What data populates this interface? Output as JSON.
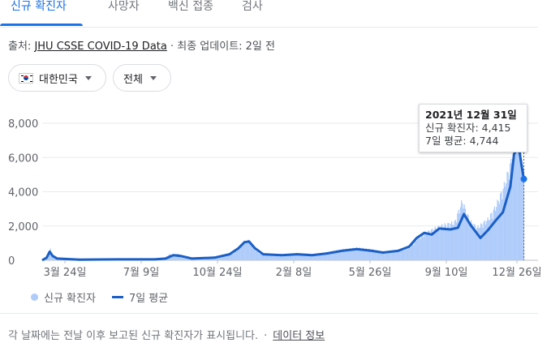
{
  "tabs": [
    {
      "label": "신규 확진자",
      "active": true
    },
    {
      "label": "사망자",
      "active": false
    },
    {
      "label": "백신 접종",
      "active": false
    },
    {
      "label": "검사",
      "active": false
    }
  ],
  "source": {
    "prefix": "출처: ",
    "link": "JHU CSSE COVID-19 Data",
    "suffix": " · 최종 업데이트: 2일 전"
  },
  "filters": {
    "country": "대한민국",
    "scope": "전체"
  },
  "tooltip": {
    "title": "2021년 12월 31일",
    "cases_line": "신규 확진자: 4,415",
    "avg_line": "7일 평균: 4,744"
  },
  "legend": {
    "daily": "신규 확진자",
    "average": "7일 평균"
  },
  "footer": {
    "note": "각 날짜에는 전날 이후 보고된 신규 확진자가 표시됩니다.",
    "sep": "·",
    "link": "데이터 정보"
  },
  "colors": {
    "accent": "#1a73e8",
    "bars": "#aecbfa",
    "avg_line": "#1a5fc6"
  },
  "chart_data": {
    "type": "area",
    "y_ticks": [
      "8,000",
      "6,000",
      "4,000",
      "2,000",
      "0"
    ],
    "y_tick_values": [
      8000,
      6000,
      4000,
      2000,
      0
    ],
    "x_ticks": [
      "3월 24일",
      "7월 9일",
      "10월 24일",
      "2월 8일",
      "5월 26일",
      "9월 10일",
      "12월 26일"
    ],
    "ylim": [
      0,
      8000
    ],
    "grid": true,
    "legend_position": "bottom-left",
    "highlight_date": "2021년 12월 31일",
    "daily_cases": [
      [
        0,
        0
      ],
      [
        4,
        150
      ],
      [
        8,
        400
      ],
      [
        10,
        700
      ],
      [
        12,
        350
      ],
      [
        14,
        250
      ],
      [
        18,
        100
      ],
      [
        40,
        60
      ],
      [
        60,
        40
      ],
      [
        90,
        40
      ],
      [
        110,
        50
      ],
      [
        140,
        50
      ],
      [
        160,
        60
      ],
      [
        170,
        350
      ],
      [
        175,
        250
      ],
      [
        180,
        400
      ],
      [
        185,
        200
      ],
      [
        195,
        100
      ],
      [
        220,
        100
      ],
      [
        240,
        200
      ],
      [
        255,
        400
      ],
      [
        262,
        700
      ],
      [
        268,
        1050
      ],
      [
        275,
        1100
      ],
      [
        280,
        800
      ],
      [
        288,
        400
      ],
      [
        300,
        300
      ],
      [
        320,
        250
      ],
      [
        340,
        400
      ],
      [
        350,
        350
      ],
      [
        360,
        300
      ],
      [
        380,
        450
      ],
      [
        400,
        600
      ],
      [
        420,
        700
      ],
      [
        440,
        600
      ],
      [
        455,
        450
      ],
      [
        470,
        550
      ],
      [
        480,
        600
      ],
      [
        490,
        700
      ],
      [
        500,
        1200
      ],
      [
        510,
        1500
      ],
      [
        520,
        1700
      ],
      [
        530,
        1900
      ],
      [
        540,
        2000
      ],
      [
        550,
        2100
      ],
      [
        560,
        3300
      ],
      [
        570,
        2200
      ],
      [
        580,
        1800
      ],
      [
        595,
        2300
      ],
      [
        605,
        3000
      ],
      [
        615,
        4000
      ],
      [
        625,
        5400
      ],
      [
        630,
        6500
      ],
      [
        635,
        7300
      ],
      [
        640,
        6000
      ],
      [
        643,
        4415
      ]
    ],
    "seven_day_average": [
      [
        0,
        0
      ],
      [
        6,
        150
      ],
      [
        10,
        500
      ],
      [
        14,
        250
      ],
      [
        20,
        100
      ],
      [
        50,
        40
      ],
      [
        100,
        50
      ],
      [
        150,
        50
      ],
      [
        165,
        100
      ],
      [
        175,
        300
      ],
      [
        185,
        250
      ],
      [
        200,
        100
      ],
      [
        230,
        150
      ],
      [
        250,
        350
      ],
      [
        262,
        700
      ],
      [
        270,
        1050
      ],
      [
        276,
        1100
      ],
      [
        284,
        700
      ],
      [
        295,
        350
      ],
      [
        320,
        300
      ],
      [
        340,
        350
      ],
      [
        360,
        300
      ],
      [
        380,
        400
      ],
      [
        400,
        550
      ],
      [
        420,
        650
      ],
      [
        440,
        550
      ],
      [
        455,
        450
      ],
      [
        475,
        550
      ],
      [
        490,
        800
      ],
      [
        500,
        1300
      ],
      [
        510,
        1600
      ],
      [
        520,
        1500
      ],
      [
        530,
        1850
      ],
      [
        545,
        1800
      ],
      [
        555,
        1900
      ],
      [
        563,
        2700
      ],
      [
        572,
        2050
      ],
      [
        585,
        1300
      ],
      [
        595,
        1750
      ],
      [
        605,
        2300
      ],
      [
        615,
        2800
      ],
      [
        625,
        4300
      ],
      [
        630,
        6200
      ],
      [
        636,
        6700
      ],
      [
        640,
        5500
      ],
      [
        643,
        4744
      ]
    ],
    "x_domain": [
      0,
      650
    ]
  }
}
